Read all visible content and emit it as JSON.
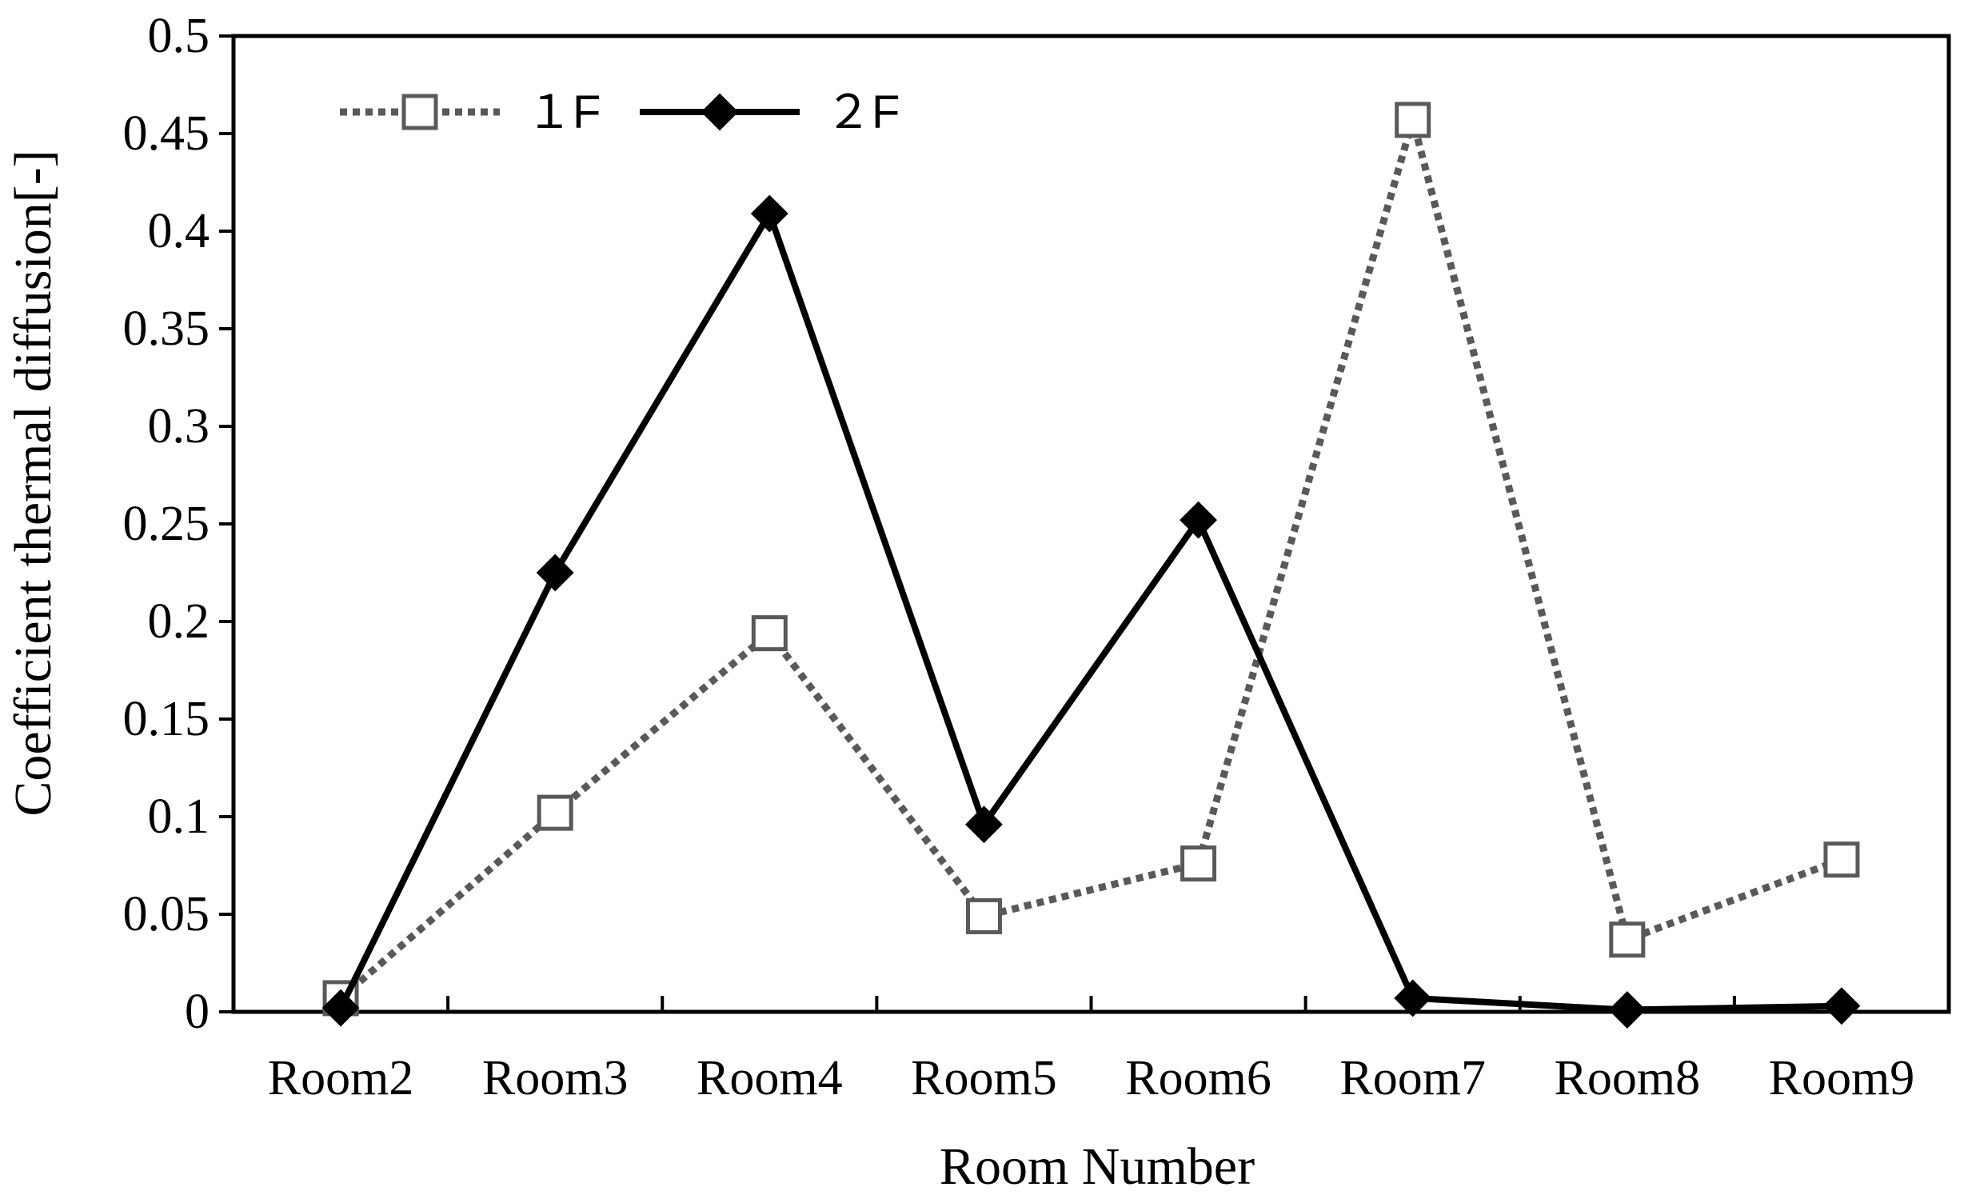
{
  "chart_data": {
    "type": "line",
    "title": "",
    "xlabel": "Room Number",
    "ylabel": "Coefficient  thermal  diffusion[-]",
    "categories": [
      "Room2",
      "Room3",
      "Room4",
      "Room5",
      "Room6",
      "Room7",
      "Room8",
      "Room9"
    ],
    "ylim": [
      0,
      0.5
    ],
    "yticks": [
      "0",
      "0.05",
      "0.1",
      "0.15",
      "0.2",
      "0.25",
      "0.3",
      "0.35",
      "0.4",
      "0.45",
      "0.5"
    ],
    "grid": false,
    "legend_position": "top-left",
    "series": [
      {
        "name": "1F",
        "legend_label": "１F",
        "values": [
          0.007,
          0.102,
          0.194,
          0.049,
          0.076,
          0.457,
          0.037,
          0.078
        ],
        "style": "dotted",
        "marker": "open-square",
        "color": "#595959"
      },
      {
        "name": "2F",
        "legend_label": "２F",
        "values": [
          0.002,
          0.225,
          0.409,
          0.096,
          0.252,
          0.007,
          0.001,
          0.003
        ],
        "style": "solid",
        "marker": "filled-diamond",
        "color": "#000000"
      }
    ]
  }
}
